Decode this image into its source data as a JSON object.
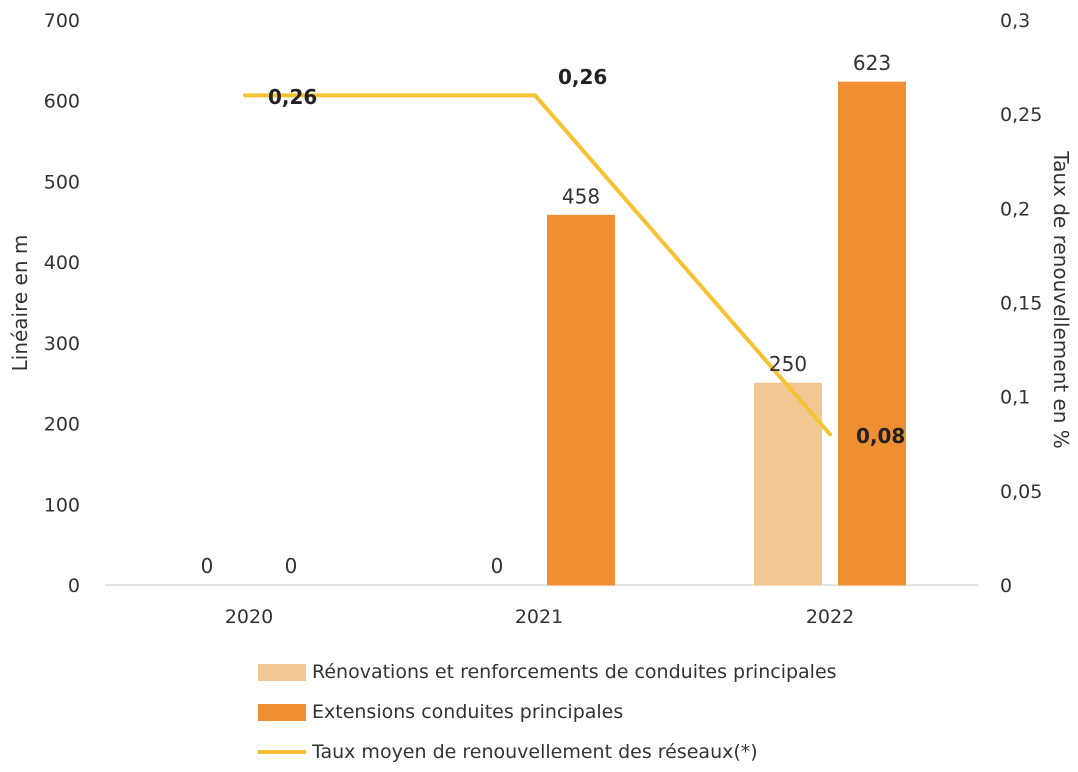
{
  "chart_data": {
    "type": "bar",
    "categories": [
      "2020",
      "2021",
      "2022"
    ],
    "series": [
      {
        "name": "Rénovations et renforcements de conduites principales",
        "kind": "bar",
        "axis": "left",
        "color": "#f3c792",
        "values": [
          0,
          0,
          250
        ],
        "labels": [
          "0",
          "0",
          "250"
        ]
      },
      {
        "name": "Extensions conduites principales",
        "kind": "bar",
        "axis": "left",
        "color": "#ef8f32",
        "values": [
          0,
          458,
          623
        ],
        "labels": [
          "0",
          "458",
          "623"
        ]
      },
      {
        "name": "Taux moyen de renouvellement des réseaux(*)",
        "kind": "line",
        "axis": "right",
        "color": "#f5c332",
        "values": [
          0.26,
          0.26,
          0.08
        ],
        "labels": [
          "0,26",
          "0,26",
          "0,08"
        ]
      }
    ],
    "ylabel": "Linéaire en m",
    "y2label": "Taux de renouvellement en %",
    "ylim": [
      0,
      700
    ],
    "y2lim": [
      0,
      0.3
    ],
    "yticks": [
      "0",
      "100",
      "200",
      "300",
      "400",
      "500",
      "600",
      "700"
    ],
    "y2ticks": [
      "0",
      "0,05",
      "0,1",
      "0,15",
      "0,2",
      "0,25",
      "0,3"
    ],
    "grid": false,
    "legend_position": "bottom"
  }
}
